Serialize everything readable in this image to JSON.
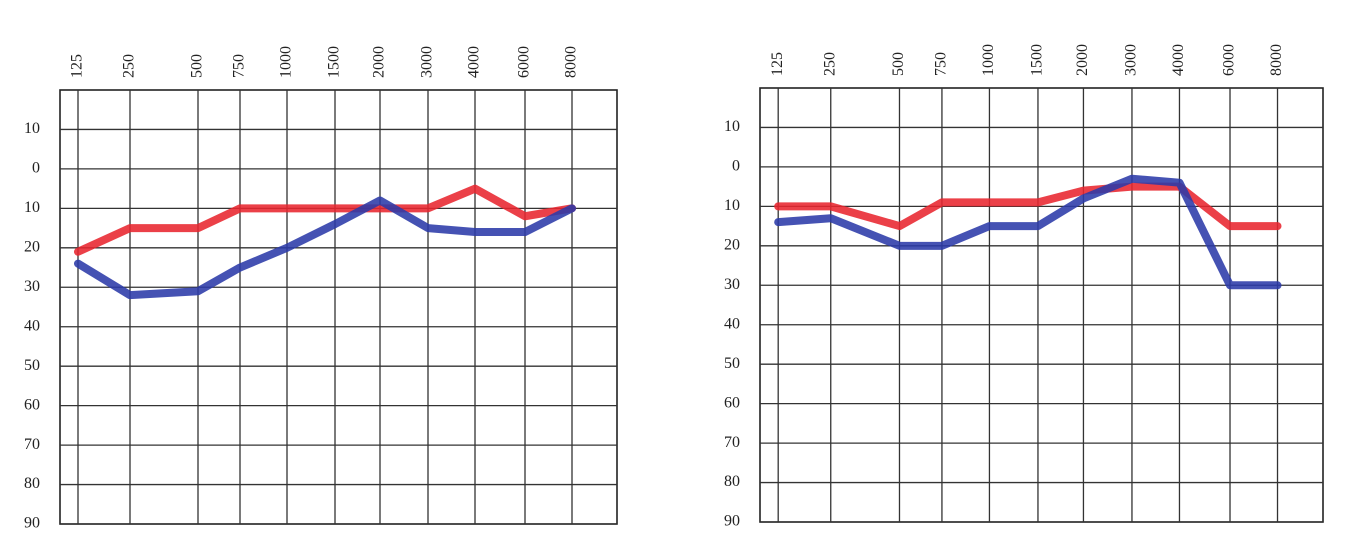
{
  "chart_data": [
    {
      "type": "line",
      "categories": [
        "125",
        "250",
        "500",
        "750",
        "1000",
        "1500",
        "2000",
        "3000",
        "4000",
        "6000",
        "8000"
      ],
      "series": [
        {
          "color": "#e8262f",
          "values": [
            21,
            15,
            15,
            10,
            10,
            10,
            10,
            10,
            5,
            12,
            10
          ]
        },
        {
          "color": "#2b3aa8",
          "values": [
            24,
            32,
            31,
            25,
            20,
            14,
            8,
            15,
            16,
            16,
            10
          ]
        }
      ],
      "ylim": [
        90,
        -20
      ],
      "yticks": [
        {
          "value": -10,
          "label": "10"
        },
        0,
        10,
        20,
        30,
        40,
        50,
        60,
        70,
        80,
        90
      ],
      "grid": true
    },
    {
      "type": "line",
      "categories": [
        "125",
        "250",
        "500",
        "750",
        "1000",
        "1500",
        "2000",
        "3000",
        "4000",
        "6000",
        "8000"
      ],
      "series": [
        {
          "color": "#e8262f",
          "values": [
            10,
            10,
            15,
            9,
            9,
            9,
            6,
            5,
            5,
            15,
            15
          ]
        },
        {
          "color": "#2b3aa8",
          "values": [
            14,
            13,
            20,
            20,
            15,
            15,
            8,
            3,
            4,
            30,
            30
          ]
        }
      ],
      "ylim": [
        90,
        -20
      ],
      "yticks": [
        {
          "value": -10,
          "label": "10"
        },
        0,
        10,
        20,
        30,
        40,
        50,
        60,
        70,
        80,
        90
      ],
      "grid": true
    }
  ]
}
